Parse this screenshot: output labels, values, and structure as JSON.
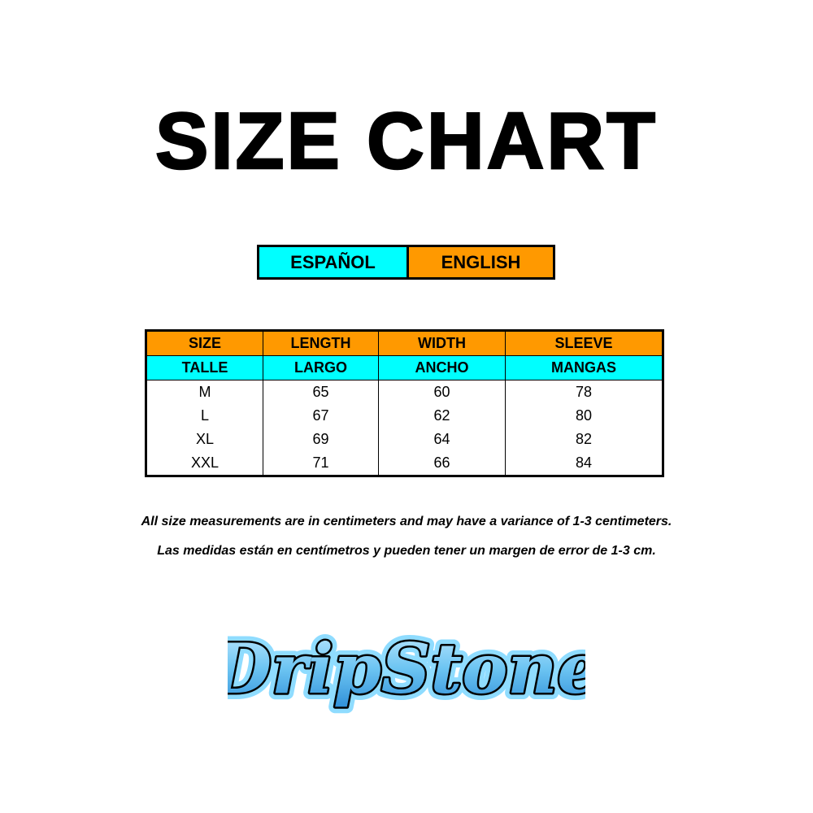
{
  "title": "SIZE CHART",
  "languages": {
    "spanish": "ESPAÑOL",
    "english": "ENGLISH"
  },
  "colors": {
    "orange": "#ff9900",
    "cyan": "#00ffff"
  },
  "table": {
    "headers_en": [
      "SIZE",
      "LENGTH",
      "WIDTH",
      "SLEEVE"
    ],
    "headers_es": [
      "TALLE",
      "LARGO",
      "ANCHO",
      "MANGAS"
    ],
    "rows": [
      [
        "M",
        "65",
        "60",
        "78"
      ],
      [
        "L",
        "67",
        "62",
        "80"
      ],
      [
        "XL",
        "69",
        "64",
        "82"
      ],
      [
        "XXL",
        "71",
        "66",
        "84"
      ]
    ]
  },
  "notes": {
    "english": "All size measurements are in centimeters and may have a variance of 1-3 centimeters.",
    "spanish": "Las medidas están en centímetros y pueden tener un margen de error de 1-3 cm."
  },
  "logo": {
    "text": "DripStone"
  }
}
